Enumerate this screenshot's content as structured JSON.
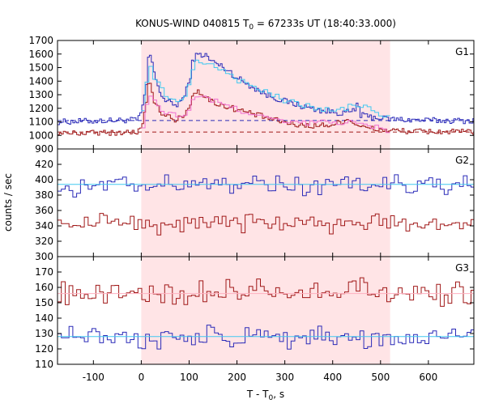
{
  "chart_data": {
    "type": "line",
    "title_prefix": "KONUS-WIND 040815 T",
    "title_sub": "0",
    "title_suffix": " = 67233s UT (18:40:33.000)",
    "xlabel_main": "T - T",
    "xlabel_sub": "0",
    "xlabel_suffix": ", s",
    "ylabel": "counts / sec",
    "xlim": [
      -175,
      695
    ],
    "xticks": [
      -100,
      0,
      100,
      200,
      300,
      400,
      500,
      600
    ],
    "highlight_interval": [
      0,
      520
    ],
    "highlight_color": "#ffe4e6",
    "colors": {
      "blue": "#2a2ab8",
      "red": "#a01818",
      "cyan": "#40c8f0",
      "pink": "#f070d0",
      "lightpink": "#ffb0c0"
    },
    "panels": [
      {
        "label": "G1",
        "ylim": [
          900,
          1700
        ],
        "yticks": [
          900,
          1000,
          1100,
          1200,
          1300,
          1400,
          1500,
          1600,
          1700
        ],
        "background_levels": [
          {
            "color": "blue",
            "value": 1110
          },
          {
            "color": "red",
            "value": 1025
          }
        ],
        "series": [
          {
            "color": "blue",
            "dt": 4,
            "segments": [
              {
                "t": -175,
                "v": 1100
              },
              {
                "t": -120,
                "v": 1105
              },
              {
                "t": -60,
                "v": 1110
              },
              {
                "t": -10,
                "v": 1115
              },
              {
                "t": 0,
                "v": 1180
              },
              {
                "t": 10,
                "v": 1400
              },
              {
                "t": 14,
                "v": 1620
              },
              {
                "t": 20,
                "v": 1560
              },
              {
                "t": 25,
                "v": 1450
              },
              {
                "t": 32,
                "v": 1380
              },
              {
                "t": 40,
                "v": 1300
              },
              {
                "t": 50,
                "v": 1250
              },
              {
                "t": 60,
                "v": 1240
              },
              {
                "t": 70,
                "v": 1220
              },
              {
                "t": 80,
                "v": 1250
              },
              {
                "t": 90,
                "v": 1300
              },
              {
                "t": 100,
                "v": 1420
              },
              {
                "t": 106,
                "v": 1560
              },
              {
                "t": 115,
                "v": 1590
              },
              {
                "t": 130,
                "v": 1600
              },
              {
                "t": 140,
                "v": 1560
              },
              {
                "t": 160,
                "v": 1520
              },
              {
                "t": 180,
                "v": 1480
              },
              {
                "t": 200,
                "v": 1420
              },
              {
                "t": 230,
                "v": 1360
              },
              {
                "t": 260,
                "v": 1300
              },
              {
                "t": 300,
                "v": 1250
              },
              {
                "t": 340,
                "v": 1210
              },
              {
                "t": 380,
                "v": 1180
              },
              {
                "t": 420,
                "v": 1165
              },
              {
                "t": 445,
                "v": 1180
              },
              {
                "t": 450,
                "v": 1260
              },
              {
                "t": 456,
                "v": 1150
              },
              {
                "t": 470,
                "v": 1140
              },
              {
                "t": 520,
                "v": 1120
              },
              {
                "t": 600,
                "v": 1110
              },
              {
                "t": 695,
                "v": 1108
              }
            ]
          },
          {
            "color": "red",
            "dt": 4,
            "segments": [
              {
                "t": -175,
                "v": 1015
              },
              {
                "t": -60,
                "v": 1020
              },
              {
                "t": -10,
                "v": 1025
              },
              {
                "t": 0,
                "v": 1060
              },
              {
                "t": 10,
                "v": 1250
              },
              {
                "t": 14,
                "v": 1400
              },
              {
                "t": 20,
                "v": 1330
              },
              {
                "t": 28,
                "v": 1220
              },
              {
                "t": 40,
                "v": 1170
              },
              {
                "t": 55,
                "v": 1150
              },
              {
                "t": 70,
                "v": 1110
              },
              {
                "t": 85,
                "v": 1140
              },
              {
                "t": 100,
                "v": 1220
              },
              {
                "t": 108,
                "v": 1320
              },
              {
                "t": 118,
                "v": 1330
              },
              {
                "t": 130,
                "v": 1290
              },
              {
                "t": 145,
                "v": 1250
              },
              {
                "t": 170,
                "v": 1220
              },
              {
                "t": 200,
                "v": 1190
              },
              {
                "t": 240,
                "v": 1150
              },
              {
                "t": 280,
                "v": 1110
              },
              {
                "t": 320,
                "v": 1080
              },
              {
                "t": 360,
                "v": 1070
              },
              {
                "t": 400,
                "v": 1080
              },
              {
                "t": 430,
                "v": 1120
              },
              {
                "t": 460,
                "v": 1060
              },
              {
                "t": 500,
                "v": 1040
              },
              {
                "t": 560,
                "v": 1030
              },
              {
                "t": 695,
                "v": 1025
              }
            ]
          },
          {
            "color": "cyan",
            "dt": 8,
            "range": [
              0,
              520
            ],
            "segments": [
              {
                "t": 0,
                "v": 1180
              },
              {
                "t": 12,
                "v": 1520
              },
              {
                "t": 30,
                "v": 1380
              },
              {
                "t": 60,
                "v": 1240
              },
              {
                "t": 90,
                "v": 1300
              },
              {
                "t": 110,
                "v": 1540
              },
              {
                "t": 140,
                "v": 1540
              },
              {
                "t": 200,
                "v": 1410
              },
              {
                "t": 300,
                "v": 1250
              },
              {
                "t": 400,
                "v": 1175
              },
              {
                "t": 450,
                "v": 1230
              },
              {
                "t": 520,
                "v": 1115
              }
            ]
          },
          {
            "color": "pink",
            "dt": 8,
            "range": [
              0,
              520
            ],
            "segments": [
              {
                "t": 0,
                "v": 1060
              },
              {
                "t": 12,
                "v": 1320
              },
              {
                "t": 30,
                "v": 1210
              },
              {
                "t": 60,
                "v": 1150
              },
              {
                "t": 90,
                "v": 1150
              },
              {
                "t": 112,
                "v": 1300
              },
              {
                "t": 140,
                "v": 1260
              },
              {
                "t": 200,
                "v": 1190
              },
              {
                "t": 300,
                "v": 1090
              },
              {
                "t": 430,
                "v": 1100
              },
              {
                "t": 520,
                "v": 1035
              }
            ]
          }
        ]
      },
      {
        "label": "G2",
        "ylim": [
          300,
          440
        ],
        "yticks": [
          300,
          320,
          340,
          360,
          380,
          400,
          420
        ],
        "series": [
          {
            "color": "blue",
            "dt": 8,
            "mean": 394,
            "noise": 9
          },
          {
            "color": "red",
            "dt": 8,
            "mean": 344,
            "noise": 8
          },
          {
            "color": "cyan",
            "fit": 394
          }
        ]
      },
      {
        "label": "G3",
        "ylim": [
          110,
          180
        ],
        "yticks": [
          110,
          120,
          130,
          140,
          150,
          160,
          170
        ],
        "series": [
          {
            "color": "red",
            "dt": 8,
            "mean": 156,
            "noise": 6
          },
          {
            "color": "blue",
            "dt": 8,
            "mean": 127,
            "noise": 5
          },
          {
            "color": "lightpink",
            "fit": 156
          },
          {
            "color": "cyan",
            "fit": 128
          }
        ]
      }
    ]
  }
}
